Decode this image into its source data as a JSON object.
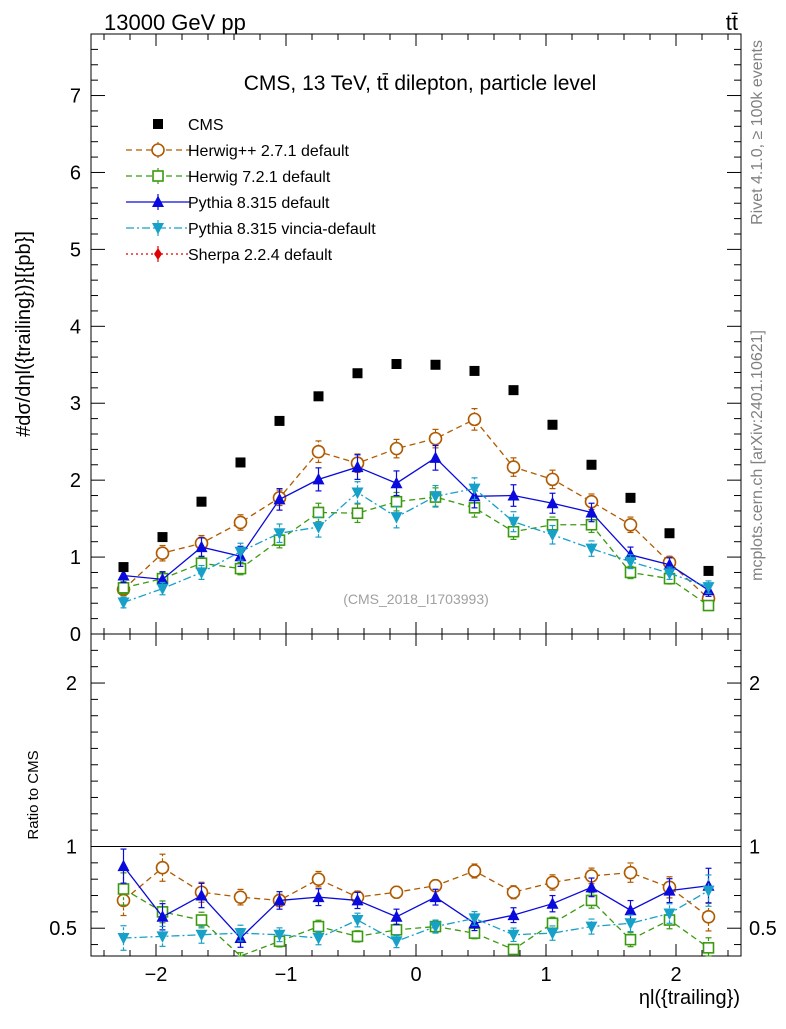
{
  "header": {
    "energy_label": "13000 GeV pp",
    "process_label": "tt̄",
    "side_label_rivet": "Rivet 4.1.0, ≥ 100k events",
    "side_label_site": "mcplots.cern.ch [arXiv:2401.10621]",
    "watermark": "(CMS_2018_I1703993)"
  },
  "chart_data": {
    "type": "scatter",
    "title": "CMS, 13 TeV, tt̄ dilepton, particle level",
    "xlabel": "ηl({trailing})",
    "ylabel_main": "#dσ/dηl({trailing})}[{pb}]",
    "ylabel_ratio": "Ratio to CMS",
    "xlim": [
      -2.5,
      2.5
    ],
    "ylim_main": [
      0,
      7.8
    ],
    "ylim_ratio": [
      0.33,
      2.3
    ],
    "x_ticks": [
      "−2",
      "−1",
      "0",
      "1",
      "2"
    ],
    "x_tick_values": [
      -2,
      -1,
      0,
      1,
      2
    ],
    "y_ticks_main": [
      "0",
      "1",
      "2",
      "3",
      "4",
      "5",
      "6",
      "7"
    ],
    "y_tick_values_main": [
      0,
      1,
      2,
      3,
      4,
      5,
      6,
      7
    ],
    "y_ticks_ratio": [
      "0.5",
      "1",
      "2"
    ],
    "y_tick_values_ratio": [
      0.5,
      1,
      2
    ],
    "x": [
      -2.25,
      -1.95,
      -1.65,
      -1.35,
      -1.05,
      -0.75,
      -0.45,
      -0.15,
      0.15,
      0.45,
      0.75,
      1.05,
      1.35,
      1.65,
      1.95,
      2.25
    ],
    "series": [
      {
        "name": "CMS",
        "color": "#000000",
        "marker": "filled-square",
        "line": "none",
        "values": [
          0.87,
          1.26,
          1.72,
          2.23,
          2.77,
          3.09,
          3.39,
          3.51,
          3.5,
          3.42,
          3.17,
          2.72,
          2.2,
          1.77,
          1.31,
          0.82
        ],
        "ratio": [
          1,
          1,
          1,
          1,
          1,
          1,
          1,
          1,
          1,
          1,
          1,
          1,
          1,
          1,
          1,
          1
        ],
        "err": [
          0,
          0,
          0,
          0,
          0,
          0,
          0,
          0,
          0,
          0,
          0,
          0,
          0,
          0,
          0,
          0
        ]
      },
      {
        "name": "Herwig++ 2.7.1 default",
        "color": "#b05a00",
        "marker": "open-circle",
        "line": "dashed",
        "values": [
          0.58,
          1.05,
          1.18,
          1.45,
          1.77,
          2.37,
          2.22,
          2.41,
          2.54,
          2.79,
          2.17,
          2.01,
          1.72,
          1.42,
          0.93,
          0.46
        ],
        "ratio": [
          0.67,
          0.87,
          0.72,
          0.69,
          0.67,
          0.8,
          0.69,
          0.72,
          0.76,
          0.85,
          0.72,
          0.78,
          0.82,
          0.84,
          0.75,
          0.57
        ],
        "err": [
          0.08,
          0.1,
          0.1,
          0.1,
          0.1,
          0.14,
          0.12,
          0.12,
          0.12,
          0.14,
          0.12,
          0.12,
          0.1,
          0.1,
          0.08,
          0.07
        ]
      },
      {
        "name": "Herwig 7.2.1 default",
        "color": "#3a9a10",
        "marker": "open-square",
        "line": "dashed",
        "values": [
          0.6,
          0.72,
          0.92,
          0.85,
          1.22,
          1.58,
          1.57,
          1.72,
          1.78,
          1.64,
          1.33,
          1.42,
          1.42,
          0.8,
          0.72,
          0.37
        ],
        "ratio": [
          0.74,
          0.6,
          0.55,
          0.32,
          0.42,
          0.51,
          0.45,
          0.49,
          0.51,
          0.47,
          0.37,
          0.53,
          0.67,
          0.43,
          0.55,
          0.38
        ],
        "err": [
          0.08,
          0.08,
          0.08,
          0.08,
          0.1,
          0.12,
          0.12,
          0.12,
          0.12,
          0.12,
          0.1,
          0.1,
          0.1,
          0.08,
          0.07,
          0.06
        ]
      },
      {
        "name": "Pythia 8.315 default",
        "color": "#0a0adc",
        "marker": "filled-triangle-up",
        "line": "solid",
        "values": [
          0.76,
          0.71,
          1.13,
          1.01,
          1.75,
          2.01,
          2.17,
          1.96,
          2.29,
          1.79,
          1.8,
          1.7,
          1.58,
          1.03,
          0.9,
          0.57
        ],
        "ratio": [
          0.88,
          0.57,
          0.7,
          0.44,
          0.67,
          0.69,
          0.67,
          0.57,
          0.69,
          0.53,
          0.58,
          0.65,
          0.75,
          0.61,
          0.73,
          0.76
        ],
        "err": [
          0.09,
          0.1,
          0.12,
          0.13,
          0.14,
          0.15,
          0.16,
          0.16,
          0.16,
          0.15,
          0.14,
          0.13,
          0.12,
          0.1,
          0.09,
          0.08
        ]
      },
      {
        "name": "Pythia 8.315 vincia-default",
        "color": "#17a0c8",
        "marker": "filled-triangle-down",
        "line": "dashdot",
        "values": [
          0.41,
          0.59,
          0.8,
          1.07,
          1.31,
          1.39,
          1.84,
          1.52,
          1.79,
          1.89,
          1.46,
          1.29,
          1.11,
          0.94,
          0.79,
          0.61
        ],
        "ratio": [
          0.44,
          0.45,
          0.46,
          0.47,
          0.46,
          0.44,
          0.55,
          0.42,
          0.51,
          0.56,
          0.46,
          0.47,
          0.51,
          0.53,
          0.59,
          0.73
        ],
        "err": [
          0.07,
          0.08,
          0.09,
          0.11,
          0.12,
          0.13,
          0.14,
          0.14,
          0.14,
          0.14,
          0.13,
          0.12,
          0.1,
          0.09,
          0.08,
          0.08
        ]
      },
      {
        "name": "Sherpa 2.2.4 default",
        "color": "#e00000",
        "marker": "filled-diamond",
        "line": "dotted",
        "values": [],
        "ratio": [],
        "err": []
      }
    ]
  }
}
